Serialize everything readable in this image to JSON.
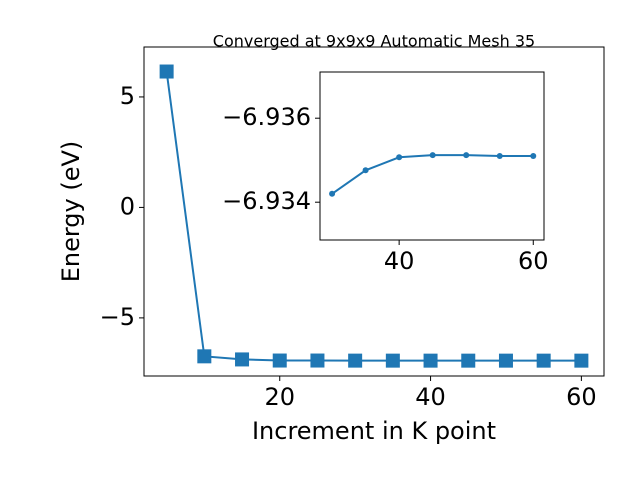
{
  "chart_data": [
    {
      "type": "line",
      "title": "Converged at 9x9x9 Automatic Mesh 35",
      "x_label": "Increment in K point",
      "y_label": "Energy (eV)",
      "marker": "square",
      "x": [
        5,
        10,
        15,
        20,
        25,
        30,
        35,
        40,
        45,
        50,
        55,
        60
      ],
      "series": [
        {
          "color": "#1f77b4",
          "values": [
            6.15,
            -6.74,
            -6.88,
            -6.93,
            -6.93,
            -6.9342,
            -6.9348,
            -6.9351,
            -6.9351,
            -6.9351,
            -6.9351,
            -6.9351
          ]
        }
      ],
      "xlim": [
        2,
        63
      ],
      "xticks": [
        20,
        40,
        60
      ],
      "ylim": [
        -7.63,
        7.26
      ],
      "yticks": [
        {
          "value": -5,
          "label": "−5"
        },
        0,
        5
      ]
    },
    {
      "type": "line",
      "marker": "circle",
      "x": [
        30,
        35,
        40,
        45,
        50,
        55,
        60
      ],
      "series": [
        {
          "color": "#1f77b4",
          "values": [
            -6.9342,
            -6.93476,
            -6.93507,
            -6.93512,
            -6.93512,
            -6.9351,
            -6.9351
          ]
        }
      ],
      "xlim": [
        28.2,
        61.6
      ],
      "xticks": [
        40,
        60
      ],
      "ylim": [
        -6.9331,
        -6.9371
      ],
      "yticks": [
        {
          "value": -6.934,
          "label": "−6.934"
        },
        {
          "value": -6.936,
          "label": "−6.936"
        }
      ]
    }
  ]
}
